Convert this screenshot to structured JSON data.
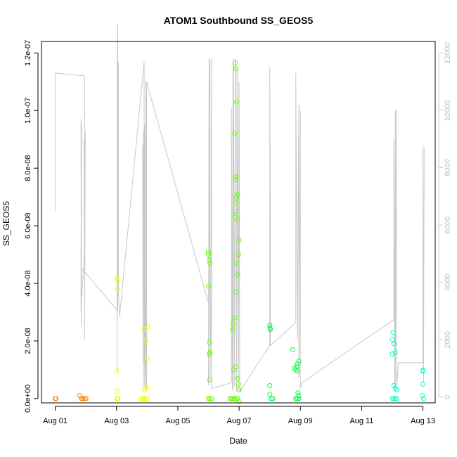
{
  "chart_data": {
    "type": "scatter",
    "title": "ATOM1 Southbound SS_GEOS5",
    "xlabel": "Date",
    "ylabel": "SS_GEOS5",
    "x_ticks": [
      {
        "label": "Aug 01",
        "day": 1
      },
      {
        "label": "Aug 03",
        "day": 3
      },
      {
        "label": "Aug 05",
        "day": 5
      },
      {
        "label": "Aug 07",
        "day": 7
      },
      {
        "label": "Aug 09",
        "day": 9
      },
      {
        "label": "Aug 11",
        "day": 11
      },
      {
        "label": "Aug 13",
        "day": 13
      }
    ],
    "xlim": [
      0.55,
      13.4
    ],
    "y_ticks": [
      "0.0e+00",
      "2.0e-08",
      "4.0e-08",
      "6.0e-08",
      "8.0e-08",
      "1.0e-07",
      "1.2e-07"
    ],
    "y_tick_values": [
      0,
      2e-08,
      4e-08,
      6e-08,
      8e-08,
      1e-07,
      1.2e-07
    ],
    "ylim": [
      -1.5e-09,
      1.24e-07
    ],
    "y2_ticks": [
      "0",
      "2000",
      "4000",
      "6000",
      "8000",
      "10000",
      "12000"
    ],
    "y2_tick_values": [
      0,
      2000,
      4000,
      6000,
      8000,
      10000,
      12000
    ],
    "y2lim": [
      -200,
      12400
    ],
    "grid": false,
    "altitude_line_color": "#c8c8c8",
    "point_colors": {
      "orange": "#ff8000",
      "orange2": "#ff9900",
      "yellow": "#e6ff00",
      "yellow2": "#f0ff00",
      "lime": "#66ff00",
      "green": "#00ff40",
      "cyan": "#00ffcc"
    },
    "series": [
      {
        "color": "#ff8000",
        "x": [
          1.0,
          1.01,
          1.02,
          1.8,
          1.85,
          1.9,
          1.95,
          2.0
        ],
        "y": [
          0,
          0,
          0,
          1e-09,
          0,
          0,
          0,
          0
        ]
      },
      {
        "color": "#e6ff00",
        "x": [
          3.0,
          3.02,
          3.04,
          3.0,
          3.01,
          3.02,
          3.03,
          3.04,
          3.05
        ],
        "y": [
          4.2e-08,
          4.1e-08,
          3.8e-08,
          9.5e-09,
          2.5e-09,
          0,
          0,
          0,
          0
        ]
      },
      {
        "color": "#f0ff00",
        "x": [
          3.8,
          3.85,
          3.9,
          3.95,
          4.0,
          4.02,
          3.9,
          3.95,
          4.0,
          3.98,
          3.92
        ],
        "y": [
          0,
          0,
          0,
          0,
          0,
          2.5e-08,
          2.4e-08,
          2e-08,
          1.4e-08,
          4e-09,
          3e-09
        ]
      },
      {
        "color": "#66ff00",
        "x": [
          6.0,
          6.0,
          6.02,
          6.05,
          6.0,
          6.03,
          6.05,
          6.02,
          6.04,
          6.0,
          6.05,
          6.1
        ],
        "y": [
          5.1e-08,
          5e-08,
          4.8e-08,
          4.7e-08,
          3.9e-08,
          1.95e-08,
          1.6e-08,
          1.55e-08,
          6.5e-09,
          0,
          0,
          0
        ]
      },
      {
        "color": "#66ff00",
        "x": [
          6.88,
          6.9,
          6.92,
          6.85,
          6.9,
          6.88,
          6.95,
          6.92,
          6.9,
          6.88,
          6.86,
          6.95,
          7.0,
          6.98,
          6.92,
          6.96,
          6.9,
          6.85,
          6.8,
          6.78,
          6.82,
          6.9,
          6.95,
          6.98,
          7.0,
          6.7,
          6.8,
          6.9,
          6.75,
          6.85,
          6.95,
          7.0
        ],
        "y": [
          1.165e-07,
          1.145e-07,
          1.03e-07,
          9.2e-08,
          7.7e-08,
          7.6e-08,
          7.1e-08,
          7e-08,
          6.8e-08,
          6.5e-08,
          6.3e-08,
          6.2e-08,
          5.5e-08,
          5e-08,
          4.7e-08,
          4.3e-08,
          3.7e-08,
          2.8e-08,
          2.6e-08,
          2.4e-08,
          1e-08,
          1.1e-08,
          7e-09,
          5e-09,
          3e-09,
          0,
          0,
          0,
          0,
          0,
          0,
          -1e-09
        ]
      },
      {
        "color": "#00ff40",
        "x": [
          8.0,
          8.01,
          8.02,
          8.0,
          8.0,
          8.05,
          8.1,
          8.75,
          8.8,
          8.85,
          8.9,
          8.95,
          8.9,
          8.88,
          8.92,
          8.95,
          8.85,
          8.9,
          8.95
        ],
        "y": [
          2.55e-08,
          2.45e-08,
          2.4e-08,
          4.5e-09,
          1.5e-09,
          0,
          0,
          1.7e-08,
          1.05e-08,
          1e-08,
          9.5e-09,
          1.3e-08,
          1.2e-08,
          1.1e-08,
          2e-09,
          1e-09,
          0,
          0,
          0
        ]
      },
      {
        "color": "#00ffcc",
        "x": [
          12.0,
          12.02,
          12.05,
          12.1,
          12.0,
          12.05,
          12.1,
          12.15,
          12.0,
          12.05,
          12.1,
          12.15,
          13.0,
          13.0,
          13.0,
          12.98,
          13.02
        ],
        "y": [
          2.05e-08,
          2.3e-08,
          1.9e-08,
          1.6e-08,
          1.55e-08,
          4.5e-09,
          3.5e-09,
          3e-09,
          0,
          0,
          0,
          0,
          9.8e-09,
          9.5e-09,
          5e-09,
          1e-09,
          0
        ]
      }
    ],
    "altitude_line": {
      "x": [
        1.0,
        1.0,
        1.02,
        1.96,
        1.96,
        1.98,
        1.96,
        1.97,
        1.94,
        1.95,
        1.84,
        1.84,
        1.86,
        1.85,
        1.84,
        1.86,
        1.84,
        1.86,
        3.04,
        3.04,
        3.02,
        3.02,
        3.03,
        3.02,
        3.04,
        3.06,
        3.06,
        3.1,
        3.9,
        3.9,
        3.92,
        3.92,
        3.85,
        3.87,
        3.88,
        3.95,
        3.95,
        3.98,
        3.98,
        6.02,
        6.02,
        6.0,
        6.05,
        6.05,
        6.07,
        6.08,
        6.1,
        6.1,
        6.75,
        6.75,
        6.78,
        6.8,
        6.8,
        6.82,
        6.85,
        6.88,
        6.9,
        6.92,
        6.95,
        6.98,
        7.0,
        7.02,
        8.0,
        8.0,
        8.02,
        8.02,
        8.85,
        8.85,
        8.9,
        8.95,
        8.95,
        9.0,
        9.0,
        9.05,
        12.05,
        12.05,
        12.08,
        12.1,
        12.1,
        12.12,
        12.15,
        12.2,
        13.0,
        13.0,
        13.02,
        13.04
      ],
      "alt": [
        6500,
        11300,
        11300,
        11200,
        2000,
        9300,
        6000,
        4300,
        9000,
        5000,
        3000,
        5000,
        9500,
        2500,
        9700,
        6500,
        3800,
        4500,
        3000,
        13000,
        11500,
        900,
        11200,
        4000,
        3500,
        11700,
        3700,
        2800,
        11700,
        1200,
        9500,
        400,
        8800,
        300,
        9300,
        200,
        11000,
        300,
        11000,
        3200,
        11800,
        400,
        11800,
        500,
        2000,
        3600,
        11800,
        300,
        500,
        10100,
        300,
        11800,
        200,
        11600,
        400,
        11800,
        11500,
        200,
        11500,
        300,
        11000,
        200,
        1800,
        11500,
        6200,
        1800,
        2600,
        11300,
        2000,
        10200,
        700,
        10000,
        300,
        500,
        2700,
        9000,
        300,
        10000,
        300,
        10000,
        400,
        1200,
        1200,
        8800,
        500,
        8700
      ]
    }
  }
}
